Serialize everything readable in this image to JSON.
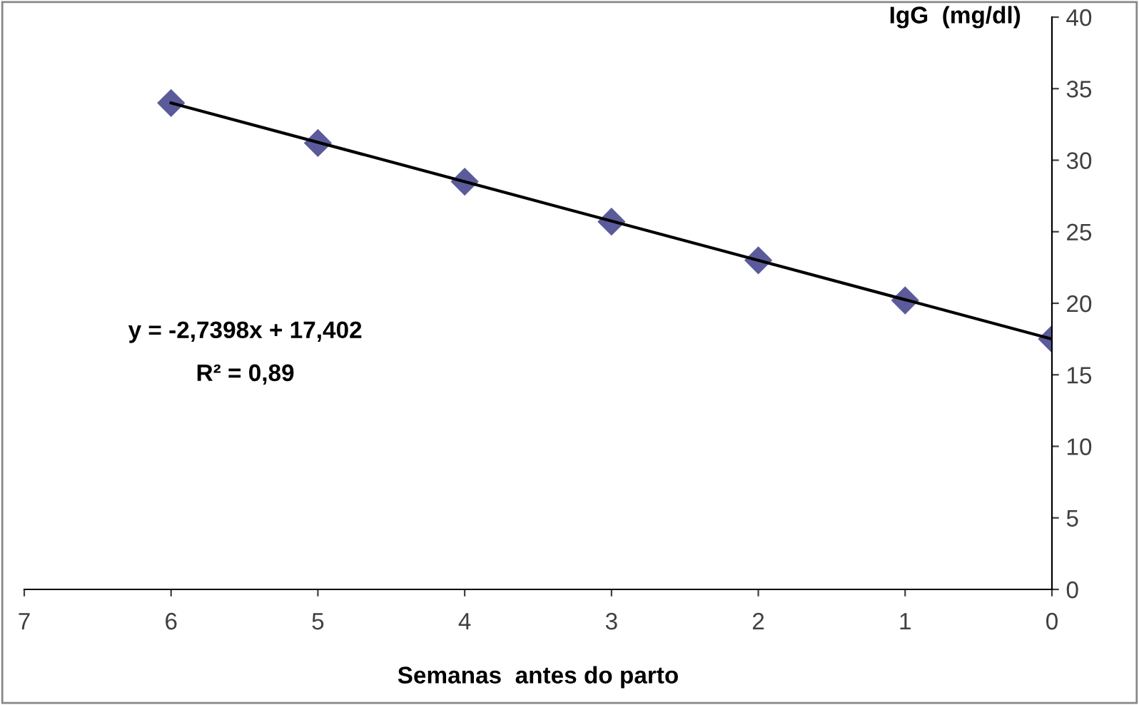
{
  "chart_data": {
    "type": "line",
    "xlabel": "Semanas  antes do parto",
    "ylabel": "IgG  (mg/dl)",
    "x": [
      6,
      5,
      4,
      3,
      2,
      1,
      0
    ],
    "series": [
      {
        "type": "scatter",
        "color": "#5b5b9b",
        "marker": "diamond",
        "values": [
          34.0,
          31.2,
          28.5,
          25.7,
          23.0,
          20.2,
          17.5
        ]
      },
      {
        "color": "#000000",
        "marker": "none",
        "x": [
          6,
          0
        ],
        "values": [
          34.0,
          17.5
        ]
      }
    ],
    "xlim": [
      7,
      0
    ],
    "xticks": [
      7,
      6,
      5,
      4,
      3,
      2,
      1,
      0
    ],
    "ylim": [
      0,
      40
    ],
    "yticks": [
      0,
      5,
      10,
      15,
      20,
      25,
      30,
      35,
      40
    ],
    "grid": false,
    "legend": false,
    "annotations": [
      "y = -2,7398x + 17,402",
      "R² = 0,89"
    ]
  }
}
